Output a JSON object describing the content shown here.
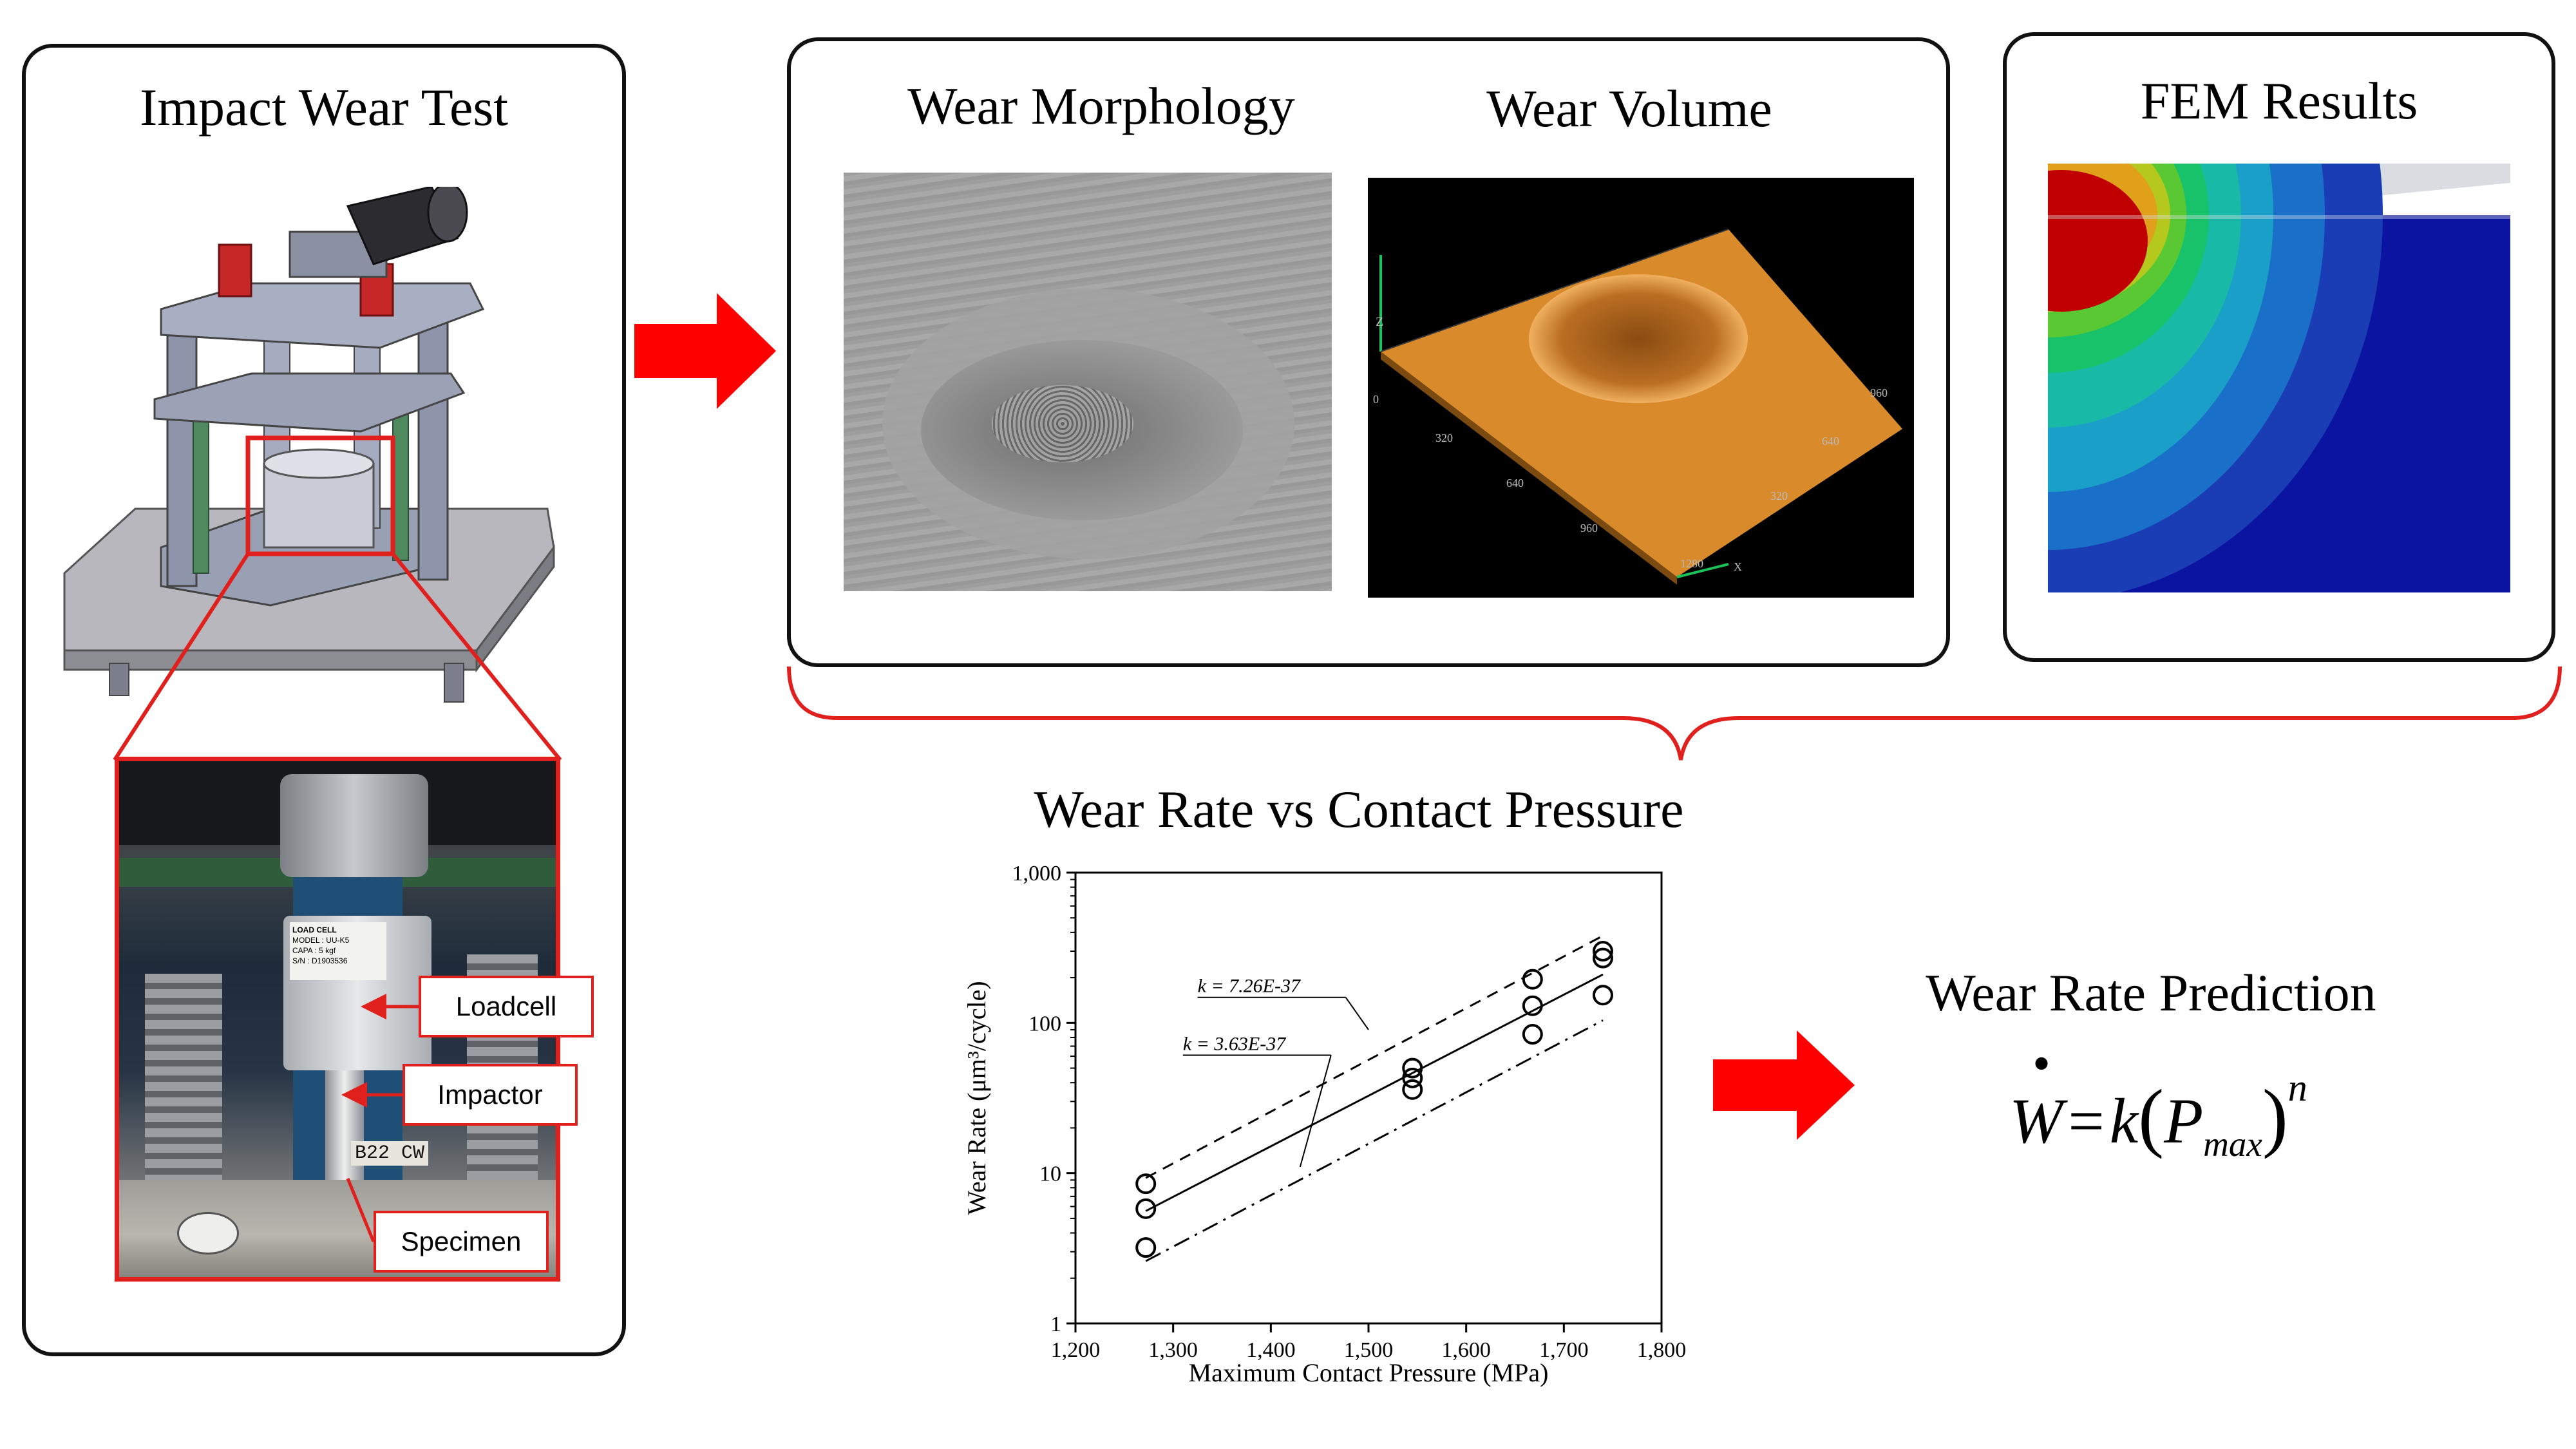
{
  "panels": {
    "impact": {
      "title": "Impact Wear Test"
    },
    "wear": {
      "morph_title": "Wear Morphology",
      "volume_title": "Wear Volume"
    },
    "fem": {
      "title": "FEM Results"
    }
  },
  "callouts": {
    "loadcell": "Loadcell",
    "impactor": "Impactor",
    "specimen": "Specimen"
  },
  "photo_labels": {
    "load_cell_brand": "LOAD CELL",
    "model": "MODEL : UU-K5",
    "capa": "CAPA : 5 kgf",
    "serial": "S/N : D1903536",
    "specimen_mark": "B22 CW"
  },
  "volume_axes": {
    "x_ticks": [
      "320",
      "640",
      "960",
      "1280"
    ],
    "y_ticks": [
      "320",
      "640",
      "960"
    ],
    "z_tick": "0",
    "x_label": "X",
    "z_label": "Z"
  },
  "chart_title": "Wear Rate vs Contact Pressure",
  "prediction": {
    "title": "Wear Rate Prediction",
    "eq_W": "W",
    "eq_eq": "=",
    "eq_k": "k",
    "eq_P": "P",
    "eq_sub": "max",
    "eq_n": "n"
  },
  "colors": {
    "arrow": "#ff0000",
    "brace": "#e0201c",
    "fem_red": "#c00000",
    "fem_blue": "#0a14a0",
    "volume_orange": "#d98a2b"
  },
  "chart_data": {
    "type": "scatter",
    "xlabel": "Maximum Contact Pressure (MPa)",
    "ylabel": "Wear Rate (μm³/cycle)",
    "x_ticks": [
      "1,200",
      "1,300",
      "1,400",
      "1,500",
      "1,600",
      "1,700",
      "1,800"
    ],
    "y_ticks": [
      "1",
      "10",
      "100",
      "1,000"
    ],
    "xlim": [
      1200,
      1800
    ],
    "ylim": [
      1,
      1000
    ],
    "y_scale": "log",
    "points": [
      {
        "x": 1272,
        "y": 8.5
      },
      {
        "x": 1272,
        "y": 5.8
      },
      {
        "x": 1272,
        "y": 3.2
      },
      {
        "x": 1545,
        "y": 50
      },
      {
        "x": 1545,
        "y": 43
      },
      {
        "x": 1545,
        "y": 36
      },
      {
        "x": 1668,
        "y": 195
      },
      {
        "x": 1668,
        "y": 130
      },
      {
        "x": 1668,
        "y": 84
      },
      {
        "x": 1740,
        "y": 300
      },
      {
        "x": 1740,
        "y": 270
      },
      {
        "x": 1740,
        "y": 153
      }
    ],
    "lines": [
      {
        "style": "dashed",
        "x": [
          1272,
          1740
        ],
        "y": [
          9.3,
          380
        ]
      },
      {
        "style": "solid",
        "x": [
          1272,
          1740
        ],
        "y": [
          5.6,
          210
        ]
      },
      {
        "style": "dashdot",
        "x": [
          1272,
          1740
        ],
        "y": [
          2.6,
          104
        ]
      }
    ],
    "annotations": [
      {
        "text": "k = 7.26E-37",
        "x": 1325,
        "y": 160
      },
      {
        "text": "k = 3.63E-37",
        "x": 1310,
        "y": 66
      }
    ]
  }
}
